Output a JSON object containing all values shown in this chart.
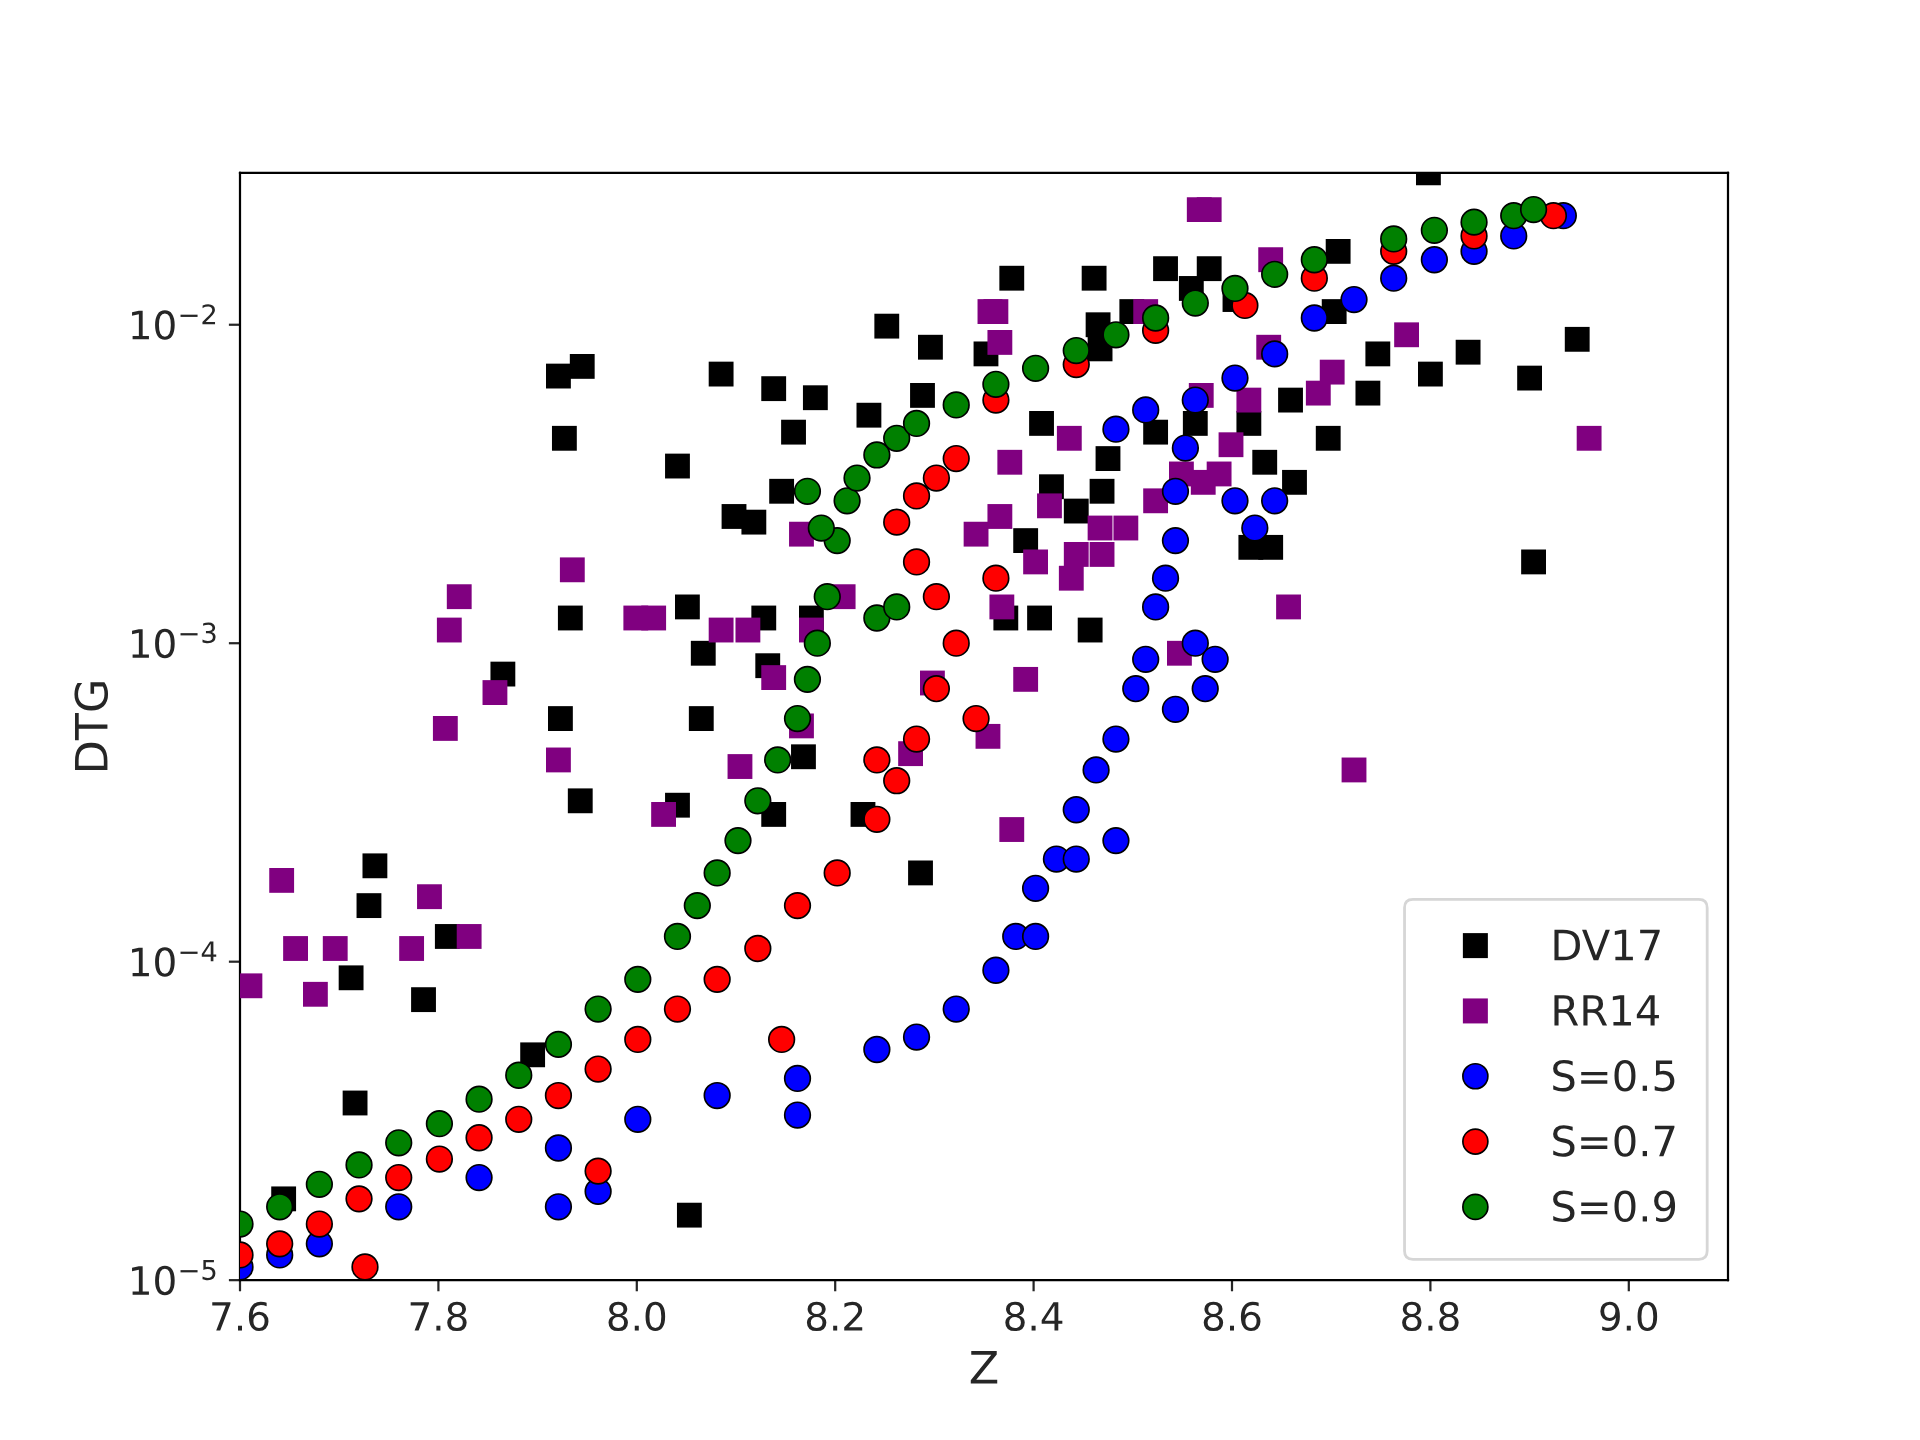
{
  "chart_data": {
    "type": "scatter",
    "xlabel": "Z",
    "ylabel": "DTG",
    "log": "y",
    "grid": false,
    "legend": "bottom right",
    "xlim": [
      7.6,
      9.1
    ],
    "xticks": [
      7.6,
      7.8,
      {
        "value": 8.0,
        "label": "8.0"
      },
      8.2,
      8.4,
      8.6,
      8.8,
      {
        "value": 9.0,
        "label": "9.0"
      }
    ],
    "ylim": [
      1e-05,
      0.03
    ],
    "yticks": [
      {
        "value": 1e-05,
        "label": "10$^{−5}$"
      },
      {
        "value": 0.0001,
        "label": "10$^{−4}$"
      },
      {
        "value": 0.001,
        "label": "10$^{−3}$"
      },
      {
        "value": 0.01,
        "label": "10$^{−2}$"
      }
    ],
    "series": [
      {
        "name": "DV17",
        "color": "#000000",
        "marker": "square",
        "x": [
          8.252,
          8.296,
          7.921,
          7.945,
          8.085,
          8.138,
          8.18,
          8.234,
          8.288,
          7.927,
          8.158,
          8.041,
          8.146,
          8.098,
          8.118,
          7.933,
          8.051,
          8.128,
          8.176,
          8.067,
          8.132,
          7.865,
          7.923,
          8.065,
          8.168,
          7.943,
          8.041,
          8.138,
          8.228,
          7.736,
          7.73,
          7.712,
          7.785,
          7.809,
          7.895,
          7.716,
          8.053,
          8.286,
          7.644,
          8.378,
          8.461,
          8.533,
          8.577,
          8.798,
          8.707,
          8.559,
          8.465,
          8.499,
          8.352,
          8.467,
          8.603,
          8.703,
          8.747,
          8.8,
          8.838,
          8.9,
          8.948,
          8.737,
          8.408,
          8.475,
          8.563,
          8.617,
          8.659,
          8.697,
          8.633,
          8.663,
          8.418,
          8.443,
          8.469,
          8.392,
          8.523,
          8.904,
          8.619,
          8.639,
          8.406,
          8.457,
          8.372
        ],
        "values": [
          0.0099,
          0.0085,
          0.0069,
          0.0074,
          0.007,
          0.0063,
          0.0059,
          0.0052,
          0.006,
          0.0044,
          0.0046,
          0.0036,
          0.003,
          0.0025,
          0.0024,
          0.0012,
          0.0013,
          0.0012,
          0.0012,
          0.00093,
          0.00085,
          0.0008,
          0.00058,
          0.00058,
          0.00044,
          0.00032,
          0.00031,
          0.00029,
          0.00029,
          0.0002,
          0.00015,
          8.9e-05,
          7.6e-05,
          0.00012,
          5.1e-05,
          3.6e-05,
          1.6e-05,
          0.00019,
          1.8e-05,
          0.014,
          0.014,
          0.015,
          0.015,
          0.03,
          0.017,
          0.013,
          0.01,
          0.011,
          0.0081,
          0.0084,
          0.012,
          0.011,
          0.0081,
          0.007,
          0.0082,
          0.0068,
          0.009,
          0.0061,
          0.0049,
          0.0038,
          0.0049,
          0.0049,
          0.0058,
          0.0044,
          0.0037,
          0.0032,
          0.0031,
          0.0026,
          0.003,
          0.0021,
          0.0046,
          0.0018,
          0.002,
          0.002,
          0.0012,
          0.0011,
          0.0012
        ]
      },
      {
        "name": "RR14",
        "color": "#800080",
        "marker": "square",
        "x": [
          8.356,
          7.935,
          7.821,
          7.811,
          7.999,
          8.017,
          8.085,
          8.112,
          8.176,
          8.166,
          8.208,
          8.138,
          7.857,
          8.298,
          7.807,
          8.166,
          7.921,
          8.104,
          8.276,
          8.027,
          7.642,
          7.791,
          7.656,
          7.696,
          7.773,
          7.831,
          7.61,
          7.676,
          8.577,
          8.567,
          8.639,
          8.362,
          8.366,
          8.513,
          8.637,
          8.776,
          8.701,
          8.687,
          8.617,
          8.569,
          8.436,
          8.376,
          8.599,
          8.416,
          8.467,
          8.493,
          8.443,
          8.402,
          8.469,
          8.438,
          8.366,
          8.342,
          8.368,
          8.547,
          8.392,
          8.657,
          8.96,
          8.523,
          8.549,
          8.587,
          8.571,
          8.354,
          8.378,
          8.723
        ],
        "values": [
          0.011,
          0.0017,
          0.0014,
          0.0011,
          0.0012,
          0.0012,
          0.0011,
          0.0011,
          0.0011,
          0.0022,
          0.0014,
          0.00078,
          0.0007,
          0.00075,
          0.00054,
          0.00055,
          0.00043,
          0.00041,
          0.00045,
          0.00029,
          0.00018,
          0.00016,
          0.00011,
          0.00011,
          0.00011,
          0.00012,
          8.4e-05,
          7.9e-05,
          0.023,
          0.023,
          0.016,
          0.011,
          0.0088,
          0.011,
          0.0085,
          0.0093,
          0.0071,
          0.0061,
          0.0058,
          0.006,
          0.0044,
          0.0037,
          0.0042,
          0.0027,
          0.0023,
          0.0023,
          0.0019,
          0.0018,
          0.0019,
          0.0016,
          0.0025,
          0.0022,
          0.0013,
          0.00093,
          0.00077,
          0.0013,
          0.0044,
          0.0028,
          0.0034,
          0.0034,
          0.0032,
          0.00051,
          0.00026,
          0.0004
        ]
      },
      {
        "name": "S=0.5",
        "color": "#0000ff",
        "marker": "circle",
        "x": [
          7.6,
          7.64,
          7.68,
          7.76,
          7.841,
          7.921,
          8.001,
          8.081,
          8.162,
          8.242,
          8.282,
          8.322,
          8.362,
          8.382,
          8.402,
          8.423,
          8.443,
          8.463,
          8.483,
          8.503,
          8.513,
          8.523,
          8.533,
          8.543,
          8.543,
          8.553,
          8.563,
          8.603,
          8.643,
          8.683,
          8.723,
          8.763,
          8.804,
          8.844,
          8.884,
          8.934,
          7.921,
          7.961,
          8.162,
          8.483,
          8.513,
          8.603,
          8.623,
          8.643,
          8.563,
          8.583,
          8.543,
          8.573,
          8.483,
          8.443,
          8.402
        ],
        "values": [
          1.1e-05,
          1.2e-05,
          1.3e-05,
          1.7e-05,
          2.1e-05,
          2.6e-05,
          3.2e-05,
          3.8e-05,
          4.3e-05,
          5.3e-05,
          5.8e-05,
          7.1e-05,
          9.4e-05,
          0.00012,
          0.00017,
          0.00021,
          0.0003,
          0.0004,
          0.0005,
          0.00072,
          0.00089,
          0.0013,
          0.0016,
          0.0021,
          0.003,
          0.0041,
          0.0058,
          0.0068,
          0.0081,
          0.0105,
          0.012,
          0.014,
          0.016,
          0.017,
          0.019,
          0.022,
          1.7e-05,
          1.9e-05,
          3.3e-05,
          0.0047,
          0.0054,
          0.0028,
          0.0023,
          0.0028,
          0.001,
          0.00089,
          0.00062,
          0.00072,
          0.00024,
          0.00021,
          0.00012
        ]
      },
      {
        "name": "S=0.7",
        "color": "#ff0000",
        "marker": "circle",
        "x": [
          7.6,
          7.64,
          7.68,
          7.72,
          7.76,
          7.801,
          7.841,
          7.881,
          7.921,
          7.961,
          8.001,
          8.041,
          8.081,
          8.122,
          8.162,
          8.202,
          8.242,
          8.262,
          8.282,
          8.302,
          8.322,
          8.302,
          8.282,
          8.262,
          8.282,
          8.302,
          8.322,
          8.362,
          8.443,
          8.523,
          8.613,
          8.683,
          8.763,
          8.844,
          8.924,
          7.726,
          7.961,
          8.342,
          8.362,
          8.242,
          8.146
        ],
        "values": [
          1.2e-05,
          1.3e-05,
          1.5e-05,
          1.8e-05,
          2.1e-05,
          2.4e-05,
          2.8e-05,
          3.2e-05,
          3.8e-05,
          4.6e-05,
          5.7e-05,
          7.1e-05,
          8.8e-05,
          0.00011,
          0.00015,
          0.00019,
          0.00028,
          0.00037,
          0.0005,
          0.00072,
          0.001,
          0.0014,
          0.0018,
          0.0024,
          0.0029,
          0.0033,
          0.0038,
          0.0058,
          0.0075,
          0.0096,
          0.0115,
          0.014,
          0.017,
          0.019,
          0.022,
          1.1e-05,
          2.2e-05,
          0.00058,
          0.0016,
          0.00043,
          5.7e-05
        ]
      },
      {
        "name": "S=0.9",
        "color": "#008000",
        "marker": "circle",
        "x": [
          7.6,
          7.64,
          7.68,
          7.72,
          7.76,
          7.801,
          7.841,
          7.881,
          7.921,
          7.961,
          8.001,
          8.041,
          8.061,
          8.081,
          8.102,
          8.122,
          8.142,
          8.162,
          8.172,
          8.182,
          8.192,
          8.202,
          8.212,
          8.222,
          8.242,
          8.262,
          8.282,
          8.322,
          8.362,
          8.402,
          8.443,
          8.483,
          8.523,
          8.563,
          8.603,
          8.643,
          8.683,
          8.763,
          8.804,
          8.844,
          8.884,
          8.904,
          8.172,
          8.186,
          8.242,
          8.262
        ],
        "values": [
          1.5e-05,
          1.7e-05,
          2e-05,
          2.3e-05,
          2.7e-05,
          3.1e-05,
          3.7e-05,
          4.4e-05,
          5.5e-05,
          7.1e-05,
          8.8e-05,
          0.00012,
          0.00015,
          0.00019,
          0.00024,
          0.00032,
          0.00043,
          0.00058,
          0.00077,
          0.001,
          0.0014,
          0.0021,
          0.0028,
          0.0033,
          0.0039,
          0.0044,
          0.0049,
          0.0056,
          0.0065,
          0.0073,
          0.0083,
          0.0093,
          0.0105,
          0.0117,
          0.013,
          0.0144,
          0.016,
          0.0186,
          0.0198,
          0.021,
          0.022,
          0.023,
          0.003,
          0.0023,
          0.0012,
          0.0013
        ]
      }
    ]
  }
}
